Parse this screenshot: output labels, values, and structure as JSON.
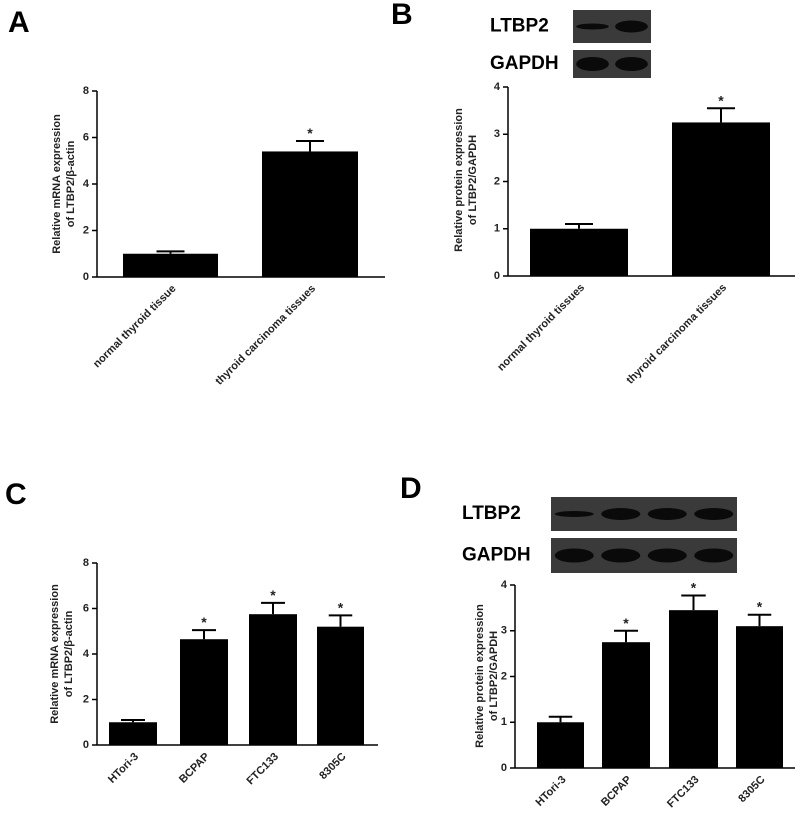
{
  "chart_data": [
    {
      "type": "bar",
      "panel": "A",
      "ylabel": [
        "Relative mRNA expression",
        "of LTBP2/β-actin"
      ],
      "categories": [
        "normal thyroid tissue",
        "thyroid carcinoma tissues"
      ],
      "values": [
        1.0,
        5.4
      ],
      "errors": [
        0.1,
        0.45
      ],
      "significance": [
        null,
        "*"
      ],
      "color": "#000000",
      "ylim": [
        0,
        8
      ],
      "yticks": [
        0,
        2,
        4,
        6,
        8
      ]
    },
    {
      "type": "bar",
      "panel": "B",
      "blot_labels": [
        "LTBP2",
        "GAPDH"
      ],
      "ylabel": [
        "Relative protein expression",
        "of LTBP2/GAPDH"
      ],
      "categories": [
        "normal thyroid tissues",
        "thyroid carcinoma tissues"
      ],
      "values": [
        1.0,
        3.25
      ],
      "errors": [
        0.1,
        0.3
      ],
      "significance": [
        null,
        "*"
      ],
      "color": "#000000",
      "ylim": [
        0,
        4
      ],
      "yticks": [
        0,
        1,
        2,
        3,
        4
      ]
    },
    {
      "type": "bar",
      "panel": "C",
      "ylabel": [
        "Relative mRNA expression",
        "of LTBP2/β-actin"
      ],
      "categories": [
        "HTori-3",
        "BCPAP",
        "FTC133",
        "8305C"
      ],
      "values": [
        1.0,
        4.65,
        5.75,
        5.2
      ],
      "errors": [
        0.1,
        0.4,
        0.5,
        0.5
      ],
      "significance": [
        null,
        "*",
        "*",
        "*"
      ],
      "color": "#000000",
      "ylim": [
        0,
        8
      ],
      "yticks": [
        0,
        2,
        4,
        6,
        8
      ]
    },
    {
      "type": "bar",
      "panel": "D",
      "blot_labels": [
        "LTBP2",
        "GAPDH"
      ],
      "ylabel": [
        "Relative protein expression",
        "of LTBP2/GAPDH"
      ],
      "categories": [
        "HTori-3",
        "BCPAP",
        "FTC133",
        "8305C"
      ],
      "values": [
        1.0,
        2.75,
        3.45,
        3.1
      ],
      "errors": [
        0.12,
        0.25,
        0.32,
        0.25
      ],
      "significance": [
        null,
        "*",
        "*",
        "*"
      ],
      "color": "#000000",
      "ylim": [
        0,
        4
      ],
      "yticks": [
        0,
        1,
        2,
        3,
        4
      ]
    }
  ]
}
